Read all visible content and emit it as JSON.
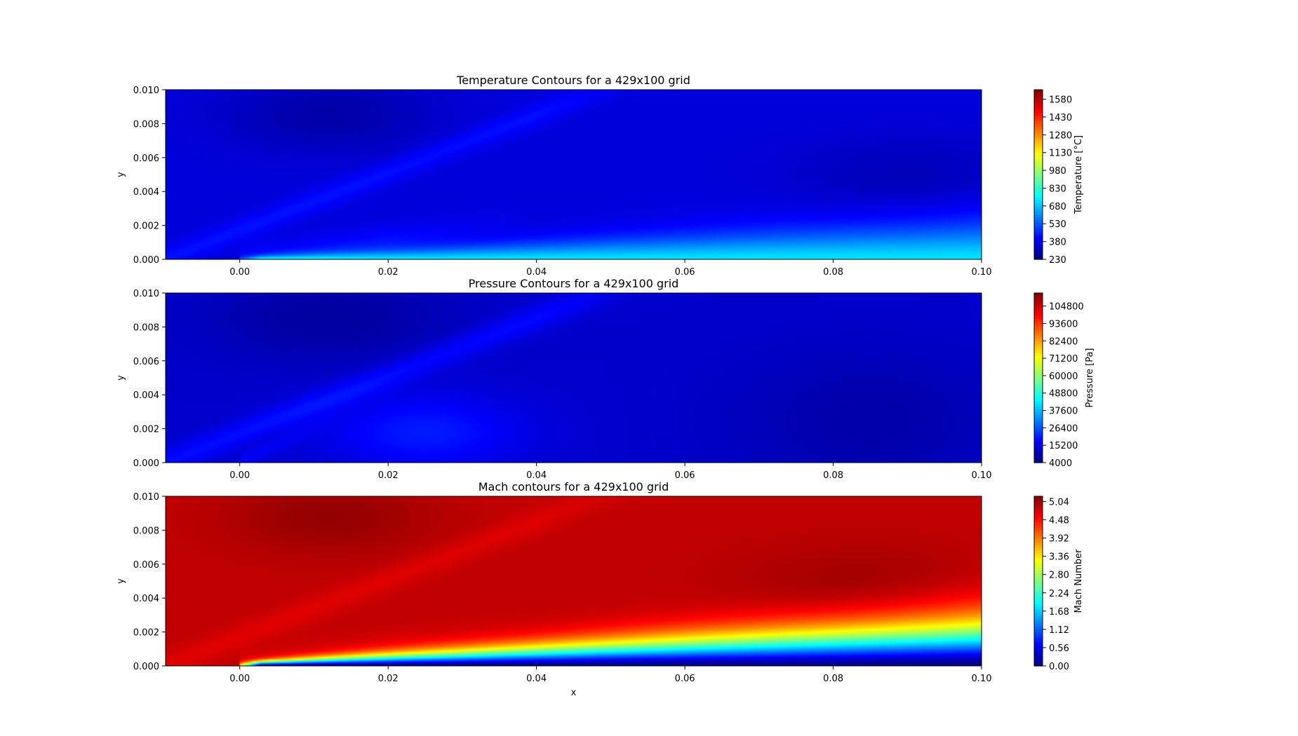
{
  "chart_data": [
    {
      "type": "heatmap",
      "id": "temperature",
      "title": "Temperature Contours for a 429x100 grid",
      "xlabel": "",
      "ylabel": "y",
      "x_ticks": [
        "0.00",
        "0.02",
        "0.04",
        "0.06",
        "0.08",
        "0.10"
      ],
      "x_tick_values": [
        0.0,
        0.02,
        0.04,
        0.06,
        0.08,
        0.1
      ],
      "y_ticks": [
        "0.000",
        "0.002",
        "0.004",
        "0.006",
        "0.008",
        "0.010"
      ],
      "y_tick_values": [
        0.0,
        0.002,
        0.004,
        0.006,
        0.008,
        0.01
      ],
      "xlim": [
        -0.01,
        0.1
      ],
      "ylim": [
        0.0,
        0.01
      ],
      "colorbar": {
        "label": "Temperature [°C]",
        "min": 230,
        "max": 1660,
        "ticks": [
          "230",
          "380",
          "530",
          "680",
          "830",
          "980",
          "1130",
          "1280",
          "1430",
          "1580"
        ],
        "tick_values": [
          230,
          380,
          530,
          680,
          830,
          980,
          1130,
          1280,
          1430,
          1580
        ]
      },
      "field": {
        "base": 0.09,
        "blobs": [
          {
            "x": 0.012,
            "y": 0.0085,
            "sx": 0.014,
            "sy": 0.0022,
            "a": -0.05
          },
          {
            "x": 0.09,
            "y": 0.0048,
            "sx": 0.016,
            "sy": 0.0025,
            "a": -0.035
          }
        ],
        "shock": {
          "x0": -0.01,
          "y0": 0.0,
          "slope": 0.17,
          "width": 0.0007,
          "a": 0.05,
          "xmax": 0.06
        },
        "wake": {
          "x0": 0.0,
          "y0": 0.0,
          "slope": 0.06,
          "width": 0.0008,
          "a": 0.04,
          "xmax": 0.04
        },
        "boundary_layer": {
          "x0": 0.0,
          "peak": 0.26,
          "thickness0": 0.00015,
          "thickness_slope": 0.02
        }
      }
    },
    {
      "type": "heatmap",
      "id": "pressure",
      "title": "Pressure Contours for a 429x100 grid",
      "xlabel": "",
      "ylabel": "y",
      "x_ticks": [
        "0.00",
        "0.02",
        "0.04",
        "0.06",
        "0.08",
        "0.10"
      ],
      "x_tick_values": [
        0.0,
        0.02,
        0.04,
        0.06,
        0.08,
        0.1
      ],
      "y_ticks": [
        "0.000",
        "0.002",
        "0.004",
        "0.006",
        "0.008",
        "0.010"
      ],
      "y_tick_values": [
        0.0,
        0.002,
        0.004,
        0.006,
        0.008,
        0.01
      ],
      "xlim": [
        -0.01,
        0.1
      ],
      "ylim": [
        0.0,
        0.01
      ],
      "colorbar": {
        "label": "Pressure [Pa]",
        "min": 4000,
        "max": 113200,
        "ticks": [
          "4000",
          "15200",
          "26400",
          "37600",
          "48800",
          "60000",
          "71200",
          "82400",
          "93600",
          "104800"
        ],
        "tick_values": [
          4000,
          15200,
          26400,
          37600,
          48800,
          60000,
          71200,
          82400,
          93600,
          104800
        ]
      },
      "field": {
        "base": 0.075,
        "blobs": [
          {
            "x": 0.012,
            "y": 0.0085,
            "sx": 0.016,
            "sy": 0.0025,
            "a": -0.045
          },
          {
            "x": 0.085,
            "y": 0.0025,
            "sx": 0.018,
            "sy": 0.004,
            "a": -0.035
          },
          {
            "x": 0.025,
            "y": 0.0018,
            "sx": 0.013,
            "sy": 0.0022,
            "a": 0.075
          }
        ],
        "shock": {
          "x0": -0.01,
          "y0": 0.0,
          "slope": 0.17,
          "width": 0.0008,
          "a": 0.06,
          "xmax": 0.06
        },
        "wake": {
          "x0": 0.0,
          "y0": 0.0,
          "slope": 0.2,
          "width": 0.00045,
          "a": 0.07,
          "xmax": 0.014
        },
        "boundary_layer": {
          "x0": 0.0,
          "peak": 0.0,
          "thickness0": 0.0001,
          "thickness_slope": 0.0
        }
      }
    },
    {
      "type": "heatmap",
      "id": "mach",
      "title": "Mach contours for a 429x100 grid",
      "xlabel": "x",
      "ylabel": "y",
      "x_ticks": [
        "0.00",
        "0.02",
        "0.04",
        "0.06",
        "0.08",
        "0.10"
      ],
      "x_tick_values": [
        0.0,
        0.02,
        0.04,
        0.06,
        0.08,
        0.1
      ],
      "y_ticks": [
        "0.000",
        "0.002",
        "0.004",
        "0.006",
        "0.008",
        "0.010"
      ],
      "y_tick_values": [
        0.0,
        0.002,
        0.004,
        0.006,
        0.008,
        0.01
      ],
      "xlim": [
        -0.01,
        0.1
      ],
      "ylim": [
        0.0,
        0.01
      ],
      "colorbar": {
        "label": "Mach Number",
        "min": 0.0,
        "max": 5.2,
        "ticks": [
          "0.00",
          "0.56",
          "1.12",
          "1.68",
          "2.24",
          "2.80",
          "3.36",
          "3.92",
          "4.48",
          "5.04"
        ],
        "tick_values": [
          0.0,
          0.56,
          1.12,
          1.68,
          2.24,
          2.8,
          3.36,
          3.92,
          4.48,
          5.04
        ]
      },
      "field": {
        "base": 0.935,
        "blobs": [
          {
            "x": 0.012,
            "y": 0.0088,
            "sx": 0.014,
            "sy": 0.0022,
            "a": 0.045
          },
          {
            "x": 0.085,
            "y": 0.0045,
            "sx": 0.018,
            "sy": 0.0025,
            "a": 0.04
          }
        ],
        "shock": {
          "x0": -0.01,
          "y0": 0.0,
          "slope": 0.17,
          "width": 0.0008,
          "a": -0.03,
          "xmax": 0.06
        },
        "wake": {
          "x0": 0.0,
          "y0": 0.0,
          "slope": 0.06,
          "width": 0.0009,
          "a": -0.02,
          "xmax": 0.04
        },
        "boundary_layer": {
          "x0": 0.0,
          "peak": -0.93,
          "thickness0": 0.0002,
          "thickness_slope": 0.022
        }
      }
    }
  ],
  "colormap": {
    "name": "jet",
    "stops": [
      "#00007f",
      "#0000ff",
      "#007fff",
      "#00ffff",
      "#7fff7f",
      "#ffff00",
      "#ff7f00",
      "#ff0000",
      "#7f0000"
    ]
  }
}
